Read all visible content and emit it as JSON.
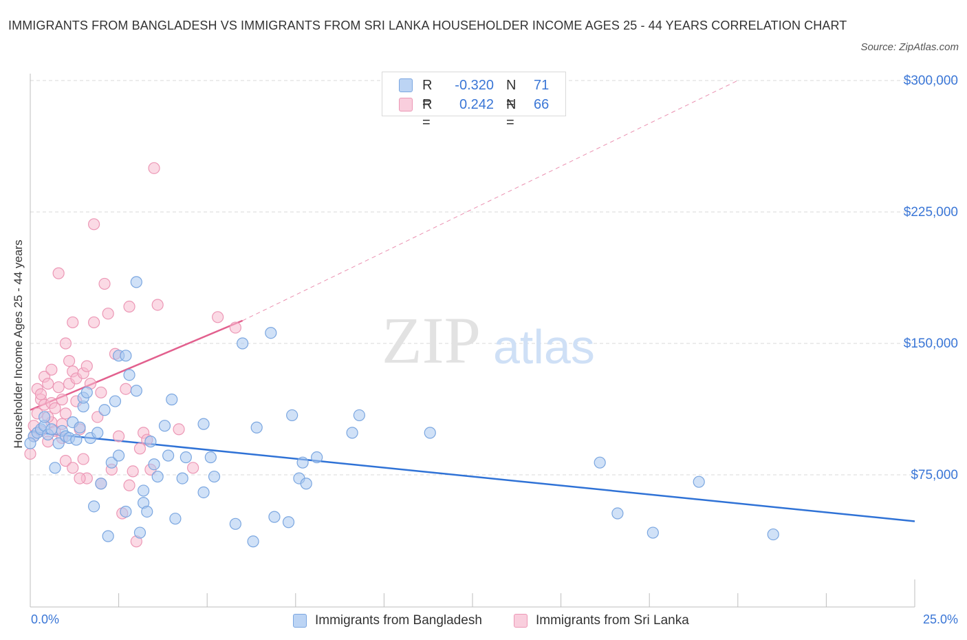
{
  "title": "IMMIGRANTS FROM BANGLADESH VS IMMIGRANTS FROM SRI LANKA HOUSEHOLDER INCOME AGES 25 - 44 YEARS CORRELATION CHART",
  "source": "Source: ZipAtlas.com",
  "watermark": {
    "zip": "ZIP",
    "atlas": "atlas"
  },
  "colors": {
    "blue_fill": "#a9c8f0",
    "blue_stroke": "#7aa6e0",
    "blue_line": "#2f72d6",
    "pink_fill": "#f7bcd0",
    "pink_stroke": "#ec97b5",
    "pink_line": "#e2608e",
    "axis_text": "#3a76d6",
    "grid": "#d8d8d8"
  },
  "legend": {
    "rows": [
      {
        "r_label": "R =",
        "r_value": "-0.320",
        "n_label": "N =",
        "n_value": "71"
      },
      {
        "r_label": "R =",
        "r_value": "0.242",
        "n_label": "N =",
        "n_value": "66"
      }
    ]
  },
  "bottom_legend": [
    "Immigrants from Bangladesh",
    "Immigrants from Sri Lanka"
  ],
  "chart_data": {
    "type": "scatter",
    "title": "IMMIGRANTS FROM BANGLADESH VS IMMIGRANTS FROM SRI LANKA HOUSEHOLDER INCOME AGES 25 - 44 YEARS CORRELATION CHART",
    "xlabel": "",
    "ylabel": "Householder Income Ages 25 - 44 years",
    "xlim": [
      0,
      25
    ],
    "ylim": [
      0,
      300000
    ],
    "x_tick_labels": [
      "0.0%",
      "25.0%"
    ],
    "y_ticks": [
      75000,
      150000,
      225000,
      300000
    ],
    "y_tick_labels": [
      "$75,000",
      "$150,000",
      "$225,000",
      "$300,000"
    ],
    "grid": "horizontal dashed",
    "legend_position": "top-center",
    "series": [
      {
        "name": "Immigrants from Bangladesh",
        "color": "#a9c8f0",
        "trend": {
          "x": [
            0.0,
            25.0
          ],
          "y": [
            99500,
            48500
          ],
          "style": "solid"
        },
        "points": [
          [
            0.1,
            97000
          ],
          [
            0.2,
            99000
          ],
          [
            0.3,
            101000
          ],
          [
            0.4,
            103000
          ],
          [
            0.4,
            108000
          ],
          [
            0.5,
            98000
          ],
          [
            0.6,
            101000
          ],
          [
            0.7,
            79000
          ],
          [
            0.8,
            93000
          ],
          [
            0.9,
            100000
          ],
          [
            1.0,
            97000
          ],
          [
            1.1,
            96000
          ],
          [
            1.2,
            105000
          ],
          [
            1.3,
            95000
          ],
          [
            1.4,
            102000
          ],
          [
            1.5,
            114000
          ],
          [
            1.5,
            119000
          ],
          [
            1.6,
            122000
          ],
          [
            1.7,
            96000
          ],
          [
            1.8,
            57000
          ],
          [
            1.9,
            99000
          ],
          [
            2.0,
            70000
          ],
          [
            2.1,
            112000
          ],
          [
            2.2,
            40000
          ],
          [
            2.3,
            82000
          ],
          [
            2.4,
            117000
          ],
          [
            2.5,
            143000
          ],
          [
            2.5,
            86000
          ],
          [
            2.7,
            54000
          ],
          [
            2.7,
            143000
          ],
          [
            2.8,
            132000
          ],
          [
            3.0,
            185000
          ],
          [
            3.0,
            123000
          ],
          [
            3.1,
            42000
          ],
          [
            3.2,
            59000
          ],
          [
            3.2,
            66000
          ],
          [
            3.3,
            54000
          ],
          [
            3.4,
            94000
          ],
          [
            3.5,
            81000
          ],
          [
            3.6,
            74000
          ],
          [
            3.8,
            103000
          ],
          [
            3.9,
            86000
          ],
          [
            4.0,
            118000
          ],
          [
            4.1,
            50000
          ],
          [
            4.3,
            73000
          ],
          [
            4.4,
            85000
          ],
          [
            4.9,
            104000
          ],
          [
            4.9,
            65000
          ],
          [
            5.1,
            85000
          ],
          [
            5.2,
            74000
          ],
          [
            5.8,
            47000
          ],
          [
            6.0,
            150000
          ],
          [
            6.3,
            37000
          ],
          [
            6.4,
            102000
          ],
          [
            6.8,
            156000
          ],
          [
            6.9,
            51000
          ],
          [
            7.3,
            48000
          ],
          [
            7.4,
            109000
          ],
          [
            7.6,
            73000
          ],
          [
            7.7,
            82000
          ],
          [
            7.8,
            70000
          ],
          [
            8.1,
            85000
          ],
          [
            9.1,
            99000
          ],
          [
            9.3,
            109000
          ],
          [
            11.3,
            99000
          ],
          [
            16.1,
            82000
          ],
          [
            16.6,
            53000
          ],
          [
            18.9,
            71000
          ],
          [
            17.6,
            42000
          ],
          [
            21.0,
            41000
          ],
          [
            0.0,
            93000
          ]
        ]
      },
      {
        "name": "Immigrants from Sri Lanka",
        "color": "#f7bcd0",
        "trend": {
          "x": [
            0.0,
            6.0
          ],
          "y": [
            112000,
            163000
          ],
          "style": "solid",
          "extended_to": [
            20.0,
            300000
          ],
          "extended_style": "dashed"
        },
        "points": [
          [
            0.0,
            87000
          ],
          [
            0.1,
            97000
          ],
          [
            0.1,
            103000
          ],
          [
            0.2,
            110000
          ],
          [
            0.2,
            124000
          ],
          [
            0.3,
            118000
          ],
          [
            0.3,
            100000
          ],
          [
            0.4,
            131000
          ],
          [
            0.4,
            115000
          ],
          [
            0.5,
            127000
          ],
          [
            0.5,
            94000
          ],
          [
            0.6,
            105000
          ],
          [
            0.6,
            116000
          ],
          [
            0.7,
            100000
          ],
          [
            0.7,
            113000
          ],
          [
            0.8,
            190000
          ],
          [
            0.8,
            125000
          ],
          [
            0.9,
            104000
          ],
          [
            0.9,
            118000
          ],
          [
            1.0,
            83000
          ],
          [
            1.0,
            110000
          ],
          [
            1.1,
            127000
          ],
          [
            1.1,
            140000
          ],
          [
            1.2,
            162000
          ],
          [
            1.2,
            134000
          ],
          [
            1.3,
            130000
          ],
          [
            1.3,
            117000
          ],
          [
            1.4,
            101000
          ],
          [
            1.5,
            84000
          ],
          [
            1.5,
            133000
          ],
          [
            1.6,
            137000
          ],
          [
            1.6,
            73000
          ],
          [
            1.7,
            127000
          ],
          [
            1.8,
            162000
          ],
          [
            1.8,
            218000
          ],
          [
            1.9,
            108000
          ],
          [
            2.0,
            70000
          ],
          [
            2.1,
            184000
          ],
          [
            2.2,
            167000
          ],
          [
            2.3,
            78000
          ],
          [
            2.4,
            144000
          ],
          [
            2.5,
            97000
          ],
          [
            2.6,
            53000
          ],
          [
            2.7,
            124000
          ],
          [
            2.8,
            171000
          ],
          [
            2.9,
            77000
          ],
          [
            3.0,
            37000
          ],
          [
            3.1,
            90000
          ],
          [
            3.2,
            99000
          ],
          [
            3.3,
            95000
          ],
          [
            3.4,
            78000
          ],
          [
            3.5,
            250000
          ],
          [
            3.6,
            172000
          ],
          [
            4.2,
            101000
          ],
          [
            4.6,
            79000
          ],
          [
            5.3,
            165000
          ],
          [
            5.8,
            159000
          ],
          [
            0.3,
            121000
          ],
          [
            0.5,
            108000
          ],
          [
            0.9,
            96000
          ],
          [
            1.2,
            79000
          ],
          [
            1.4,
            73000
          ],
          [
            2.0,
            122000
          ],
          [
            2.8,
            69000
          ],
          [
            0.6,
            135000
          ],
          [
            1.0,
            150000
          ]
        ]
      }
    ]
  }
}
